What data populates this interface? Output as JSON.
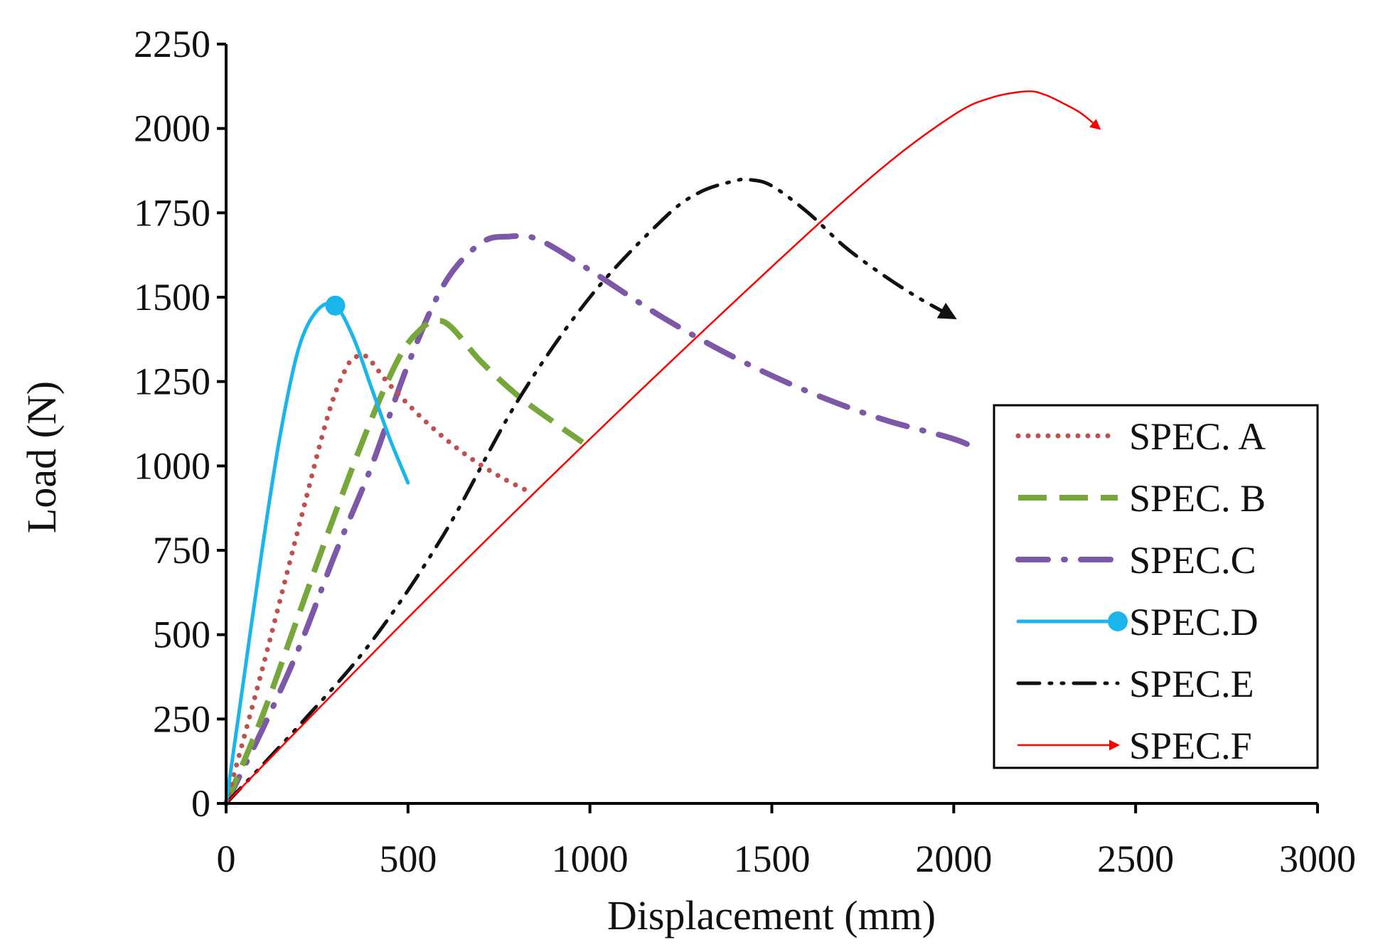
{
  "chart_data": {
    "type": "line",
    "title": "",
    "xlabel": "Displacement (mm)",
    "ylabel": "Load (N)",
    "xlim": [
      0,
      3000
    ],
    "ylim": [
      0,
      2250
    ],
    "xticks": [
      0,
      500,
      1000,
      1500,
      2000,
      2500,
      3000
    ],
    "yticks": [
      0,
      250,
      500,
      750,
      1000,
      1250,
      1500,
      1750,
      2000,
      2250
    ],
    "grid": false,
    "legend_position": "right",
    "series": [
      {
        "name": "SPEC. A",
        "color": "#C0504D",
        "style": "dotted",
        "marker": "none",
        "end": "none",
        "x": [
          0,
          100,
          200,
          280,
          330,
          360,
          390,
          450,
          550,
          650,
          750,
          840
        ],
        "y": [
          0,
          400,
          820,
          1150,
          1290,
          1325,
          1320,
          1240,
          1130,
          1040,
          970,
          920
        ]
      },
      {
        "name": "SPEC. B",
        "color": "#77A63A",
        "style": "dashed",
        "marker": "none",
        "end": "none",
        "x": [
          0,
          100,
          200,
          300,
          400,
          480,
          540,
          580,
          620,
          700,
          800,
          900,
          980
        ],
        "y": [
          0,
          260,
          560,
          860,
          1140,
          1330,
          1410,
          1430,
          1410,
          1310,
          1210,
          1130,
          1070
        ]
      },
      {
        "name": "SPEC.C",
        "color": "#7E58A8",
        "style": "dashdot",
        "marker": "none",
        "end": "none",
        "x": [
          0,
          100,
          200,
          300,
          400,
          500,
          600,
          700,
          780,
          860,
          1000,
          1200,
          1400,
          1600,
          1800,
          2000,
          2060
        ],
        "y": [
          0,
          220,
          460,
          740,
          1000,
          1300,
          1540,
          1660,
          1680,
          1670,
          1580,
          1440,
          1320,
          1220,
          1140,
          1080,
          1050
        ]
      },
      {
        "name": "SPEC.D",
        "color": "#1AB5EA",
        "style": "solid",
        "marker": "circle",
        "end": "none",
        "x": [
          0,
          50,
          100,
          150,
          200,
          250,
          300,
          350,
          400,
          450,
          500
        ],
        "y": [
          0,
          380,
          760,
          1100,
          1350,
          1460,
          1475,
          1380,
          1230,
          1080,
          950
        ]
      },
      {
        "name": "SPEC.E",
        "color": "#111111",
        "style": "dashdotdot",
        "marker": "none",
        "end": "arrow",
        "x": [
          0,
          200,
          400,
          600,
          800,
          1000,
          1200,
          1300,
          1400,
          1440,
          1500,
          1600,
          1700,
          1800,
          1900,
          2000
        ],
        "y": [
          0,
          230,
          480,
          800,
          1190,
          1500,
          1730,
          1810,
          1845,
          1848,
          1830,
          1750,
          1650,
          1570,
          1500,
          1440
        ]
      },
      {
        "name": "SPEC.F",
        "color": "#FF0000",
        "style": "solid",
        "marker": "none",
        "end": "arrow",
        "x": [
          0,
          500,
          1000,
          1500,
          1800,
          2000,
          2100,
          2200,
          2250,
          2300,
          2350,
          2400
        ],
        "y": [
          0,
          550,
          1080,
          1590,
          1880,
          2040,
          2090,
          2110,
          2100,
          2075,
          2045,
          2000
        ]
      }
    ]
  }
}
